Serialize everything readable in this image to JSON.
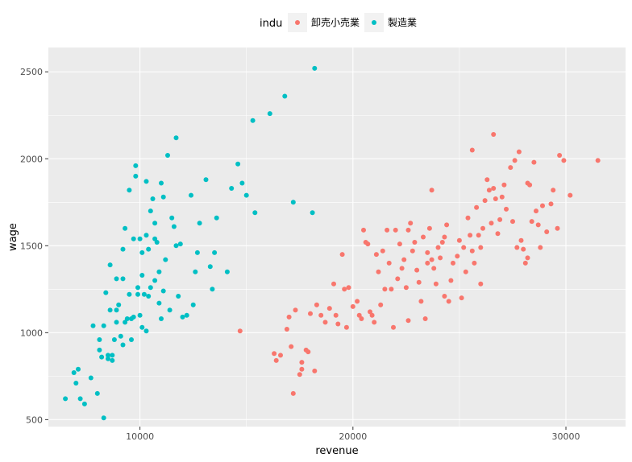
{
  "colors": {
    "panel_bg": "#EBEBEB",
    "grid_major": "#FFFFFF",
    "tick_mark": "#333333",
    "tick_text": "#4D4D4D"
  },
  "chart_data": {
    "type": "scatter",
    "title": "",
    "xlabel": "revenue",
    "ylabel": "wage",
    "xlim": [
      5700,
      32800
    ],
    "ylim": [
      460,
      2640
    ],
    "x_ticks": [
      10000,
      20000,
      30000
    ],
    "y_ticks": [
      500,
      1000,
      1500,
      2000,
      2500
    ],
    "x_tick_labels": [
      "10000",
      "20000",
      "30000"
    ],
    "y_tick_labels": [
      "500",
      "1000",
      "1500",
      "2000",
      "2500"
    ],
    "grid": true,
    "legend": {
      "title": "indu",
      "position": "top"
    },
    "series": [
      {
        "name": "卸売小売業",
        "color": "#F8766D",
        "points": [
          [
            14700,
            1010
          ],
          [
            16300,
            880
          ],
          [
            16400,
            840
          ],
          [
            16600,
            870
          ],
          [
            16900,
            1020
          ],
          [
            17000,
            1090
          ],
          [
            17100,
            920
          ],
          [
            17200,
            650
          ],
          [
            17300,
            1130
          ],
          [
            17500,
            760
          ],
          [
            17600,
            790
          ],
          [
            17600,
            830
          ],
          [
            17800,
            900
          ],
          [
            17900,
            890
          ],
          [
            18000,
            1110
          ],
          [
            18200,
            780
          ],
          [
            18300,
            1160
          ],
          [
            18500,
            1100
          ],
          [
            18700,
            1060
          ],
          [
            18900,
            1140
          ],
          [
            19100,
            1280
          ],
          [
            19200,
            1100
          ],
          [
            19300,
            1050
          ],
          [
            19500,
            1450
          ],
          [
            19600,
            1250
          ],
          [
            19700,
            1030
          ],
          [
            19800,
            1260
          ],
          [
            20000,
            1150
          ],
          [
            20200,
            1180
          ],
          [
            20300,
            1100
          ],
          [
            20400,
            1080
          ],
          [
            20500,
            1590
          ],
          [
            20600,
            1520
          ],
          [
            20700,
            1510
          ],
          [
            20800,
            1120
          ],
          [
            20900,
            1100
          ],
          [
            21000,
            1060
          ],
          [
            21100,
            1450
          ],
          [
            21200,
            1350
          ],
          [
            21300,
            1160
          ],
          [
            21400,
            1470
          ],
          [
            21500,
            1250
          ],
          [
            21600,
            1590
          ],
          [
            21700,
            1400
          ],
          [
            21800,
            1250
          ],
          [
            21900,
            1030
          ],
          [
            22000,
            1590
          ],
          [
            22100,
            1310
          ],
          [
            22200,
            1510
          ],
          [
            22300,
            1370
          ],
          [
            22400,
            1420
          ],
          [
            22500,
            1260
          ],
          [
            22600,
            1590
          ],
          [
            22700,
            1630
          ],
          [
            22800,
            1470
          ],
          [
            22900,
            1520
          ],
          [
            23000,
            1360
          ],
          [
            23100,
            1290
          ],
          [
            23200,
            1180
          ],
          [
            23300,
            1550
          ],
          [
            23400,
            1080
          ],
          [
            23500,
            1460
          ],
          [
            23500,
            1400
          ],
          [
            23600,
            1600
          ],
          [
            23700,
            1820
          ],
          [
            23700,
            1420
          ],
          [
            23800,
            1370
          ],
          [
            23900,
            1280
          ],
          [
            24000,
            1490
          ],
          [
            24100,
            1430
          ],
          [
            24200,
            1520
          ],
          [
            24300,
            1550
          ],
          [
            24400,
            1620
          ],
          [
            24500,
            1180
          ],
          [
            24600,
            1300
          ],
          [
            24700,
            1400
          ],
          [
            24900,
            1440
          ],
          [
            25000,
            1530
          ],
          [
            25100,
            1200
          ],
          [
            25200,
            1490
          ],
          [
            25300,
            1350
          ],
          [
            25400,
            1660
          ],
          [
            25500,
            1560
          ],
          [
            25600,
            1470
          ],
          [
            25600,
            2050
          ],
          [
            25700,
            1400
          ],
          [
            25800,
            1720
          ],
          [
            25900,
            1560
          ],
          [
            26000,
            1280
          ],
          [
            26000,
            1490
          ],
          [
            26100,
            1600
          ],
          [
            26200,
            1760
          ],
          [
            26300,
            1880
          ],
          [
            26400,
            1820
          ],
          [
            26500,
            1630
          ],
          [
            26600,
            1830
          ],
          [
            26600,
            2140
          ],
          [
            26700,
            1770
          ],
          [
            26800,
            1570
          ],
          [
            26900,
            1650
          ],
          [
            27000,
            1780
          ],
          [
            27100,
            1850
          ],
          [
            27200,
            1710
          ],
          [
            27400,
            1950
          ],
          [
            27500,
            1640
          ],
          [
            27600,
            1990
          ],
          [
            27700,
            1490
          ],
          [
            27800,
            2040
          ],
          [
            27900,
            1530
          ],
          [
            28000,
            1480
          ],
          [
            28100,
            1400
          ],
          [
            28200,
            1860
          ],
          [
            28300,
            1850
          ],
          [
            28400,
            1640
          ],
          [
            28500,
            1980
          ],
          [
            28600,
            1700
          ],
          [
            28700,
            1620
          ],
          [
            28800,
            1490
          ],
          [
            28900,
            1730
          ],
          [
            29100,
            1580
          ],
          [
            29300,
            1740
          ],
          [
            29400,
            1820
          ],
          [
            29600,
            1600
          ],
          [
            29700,
            2020
          ],
          [
            29900,
            1990
          ],
          [
            30200,
            1790
          ],
          [
            31500,
            1990
          ],
          [
            28200,
            1430
          ],
          [
            24300,
            1210
          ],
          [
            22600,
            1070
          ]
        ]
      },
      {
        "name": "製造業",
        "color": "#00BFC4",
        "points": [
          [
            6500,
            620
          ],
          [
            6900,
            770
          ],
          [
            7000,
            710
          ],
          [
            7100,
            790
          ],
          [
            7200,
            620
          ],
          [
            7400,
            590
          ],
          [
            7700,
            740
          ],
          [
            7800,
            1040
          ],
          [
            8000,
            650
          ],
          [
            8100,
            900
          ],
          [
            8100,
            960
          ],
          [
            8200,
            860
          ],
          [
            8300,
            1040
          ],
          [
            8300,
            510
          ],
          [
            8400,
            1230
          ],
          [
            8500,
            870
          ],
          [
            8500,
            850
          ],
          [
            8600,
            1390
          ],
          [
            8600,
            1130
          ],
          [
            8700,
            870
          ],
          [
            8700,
            840
          ],
          [
            8800,
            960
          ],
          [
            8900,
            1060
          ],
          [
            8900,
            1310
          ],
          [
            9000,
            1160
          ],
          [
            9100,
            980
          ],
          [
            9200,
            1310
          ],
          [
            9300,
            1600
          ],
          [
            9300,
            1060
          ],
          [
            9400,
            1080
          ],
          [
            9500,
            1220
          ],
          [
            9500,
            1820
          ],
          [
            9600,
            960
          ],
          [
            9700,
            1090
          ],
          [
            9700,
            1540
          ],
          [
            9800,
            1900
          ],
          [
            9800,
            1960
          ],
          [
            9900,
            1220
          ],
          [
            10000,
            1540
          ],
          [
            10000,
            1100
          ],
          [
            10100,
            1460
          ],
          [
            10100,
            1330
          ],
          [
            10200,
            1220
          ],
          [
            10300,
            1560
          ],
          [
            10300,
            1010
          ],
          [
            10400,
            1480
          ],
          [
            10500,
            1700
          ],
          [
            10500,
            1260
          ],
          [
            10600,
            1770
          ],
          [
            10700,
            1300
          ],
          [
            10700,
            1630
          ],
          [
            10800,
            1520
          ],
          [
            10900,
            1170
          ],
          [
            11000,
            1080
          ],
          [
            11000,
            1860
          ],
          [
            11100,
            1780
          ],
          [
            11200,
            1420
          ],
          [
            11300,
            2020
          ],
          [
            11400,
            1130
          ],
          [
            11500,
            1660
          ],
          [
            11600,
            1610
          ],
          [
            11700,
            2120
          ],
          [
            11800,
            1210
          ],
          [
            11900,
            1510
          ],
          [
            12000,
            1090
          ],
          [
            12200,
            1100
          ],
          [
            12400,
            1790
          ],
          [
            12500,
            1160
          ],
          [
            12700,
            1460
          ],
          [
            12800,
            1630
          ],
          [
            13100,
            1880
          ],
          [
            13300,
            1380
          ],
          [
            13400,
            1250
          ],
          [
            13500,
            1460
          ],
          [
            13600,
            1660
          ],
          [
            14100,
            1350
          ],
          [
            14300,
            1830
          ],
          [
            14600,
            1970
          ],
          [
            14800,
            1860
          ],
          [
            15000,
            1790
          ],
          [
            15300,
            2220
          ],
          [
            15400,
            1690
          ],
          [
            16100,
            2260
          ],
          [
            16800,
            2360
          ],
          [
            17200,
            1750
          ],
          [
            18100,
            1690
          ],
          [
            18200,
            2520
          ],
          [
            10400,
            1210
          ],
          [
            11700,
            1500
          ],
          [
            10900,
            1350
          ],
          [
            10100,
            1030
          ],
          [
            9200,
            1480
          ],
          [
            8900,
            1130
          ],
          [
            12600,
            1350
          ],
          [
            9600,
            1080
          ],
          [
            10300,
            1870
          ],
          [
            11100,
            1240
          ],
          [
            10700,
            1540
          ],
          [
            9900,
            1260
          ],
          [
            9200,
            930
          ]
        ]
      }
    ]
  }
}
